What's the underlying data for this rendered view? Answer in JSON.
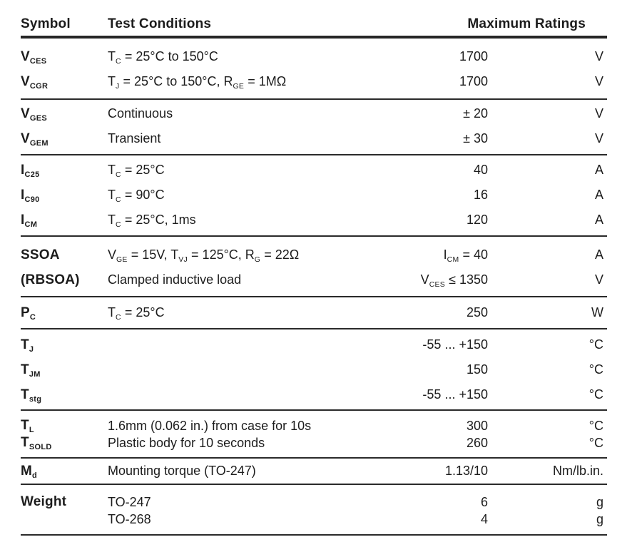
{
  "colors": {
    "text": "#1c1c1c",
    "rule": "#2a2a2a",
    "background": "#ffffff"
  },
  "header": {
    "symbol": "Symbol",
    "conditions": "Test Conditions",
    "ratings": "Maximum Ratings"
  },
  "table": {
    "groups": [
      {
        "rows": [
          {
            "symbol": "V_{CES}",
            "cond": "T_{C} = 25°C to 150°C",
            "value": "1700",
            "unit": "V"
          },
          {
            "symbol": "V_{CGR}",
            "cond": "T_{J} =  25°C to 150°C, R_{GE} = 1MΩ",
            "value": "1700",
            "unit": "V"
          }
        ]
      },
      {
        "rows": [
          {
            "symbol": "V_{GES}",
            "cond": "Continuous",
            "value": "± 20",
            "unit": "V"
          },
          {
            "symbol": "V_{GEM}",
            "cond": "Transient",
            "value": "± 30",
            "unit": "V"
          }
        ]
      },
      {
        "rows": [
          {
            "symbol": "I_{C25}",
            "cond": "T_{C} = 25°C",
            "value": "40",
            "unit": "A"
          },
          {
            "symbol": "I_{C90}",
            "cond": "T_{C} = 90°C",
            "value": "16",
            "unit": "A"
          },
          {
            "symbol": "I_{CM}",
            "cond": "T_{C} = 25°C, 1ms",
            "value": "120",
            "unit": "A"
          }
        ]
      },
      {
        "rows": [
          {
            "symbol": "SSOA",
            "cond": "V_{GE} = 15V, T_{VJ} = 125°C, R_{G} = 22Ω",
            "value": "I_{CM} =  40",
            "unit": "A"
          },
          {
            "symbol": "(RBSOA)",
            "cond": "Clamped inductive load",
            "value": "V_{CES} ≤ 1350",
            "unit": "V"
          }
        ]
      },
      {
        "rows": [
          {
            "symbol": "P_{C}",
            "cond": "T_{C} = 25°C",
            "value": "250",
            "unit": "W"
          }
        ]
      },
      {
        "rows": [
          {
            "symbol": "T_{J}",
            "cond": "",
            "value": "-55 ... +150",
            "unit": "°C"
          },
          {
            "symbol": "T_{JM}",
            "cond": "",
            "value": "150",
            "unit": "°C"
          },
          {
            "symbol": "T_{stg}",
            "cond": "",
            "value": "-55 ... +150",
            "unit": "°C"
          }
        ]
      },
      {
        "rows": [
          {
            "symbol": "T_{L}",
            "cond": "1.6mm (0.062 in.) from case for 10s",
            "value": "300",
            "unit": "°C"
          },
          {
            "symbol": "T_{SOLD}",
            "cond": "Plastic body for 10 seconds",
            "value": "260",
            "unit": "°C"
          }
        ]
      },
      {
        "rows": [
          {
            "symbol": "M_{d}",
            "cond": "Mounting torque (TO-247)",
            "value": "1.13/10",
            "unit": "Nm/lb.in."
          }
        ]
      },
      {
        "rows": [
          {
            "symbol": "Weight",
            "cond": "TO-247",
            "value": "6",
            "unit": "g"
          },
          {
            "symbol": "",
            "cond": "TO-268",
            "value": "4",
            "unit": "g"
          }
        ]
      }
    ]
  }
}
